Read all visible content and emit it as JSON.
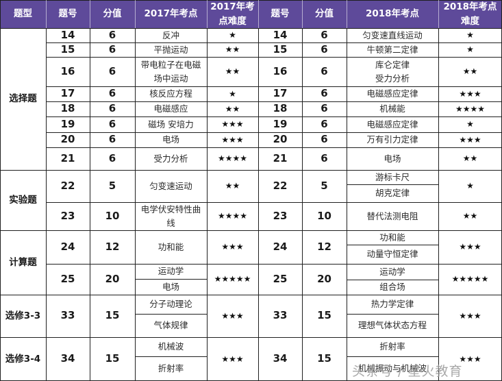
{
  "header": {
    "type": "题型",
    "no_2017": "题号",
    "score_2017": "分值",
    "topic_2017": "2017年考点",
    "diff_2017": "2017年考\n点难度",
    "no_2018": "题号",
    "score_2018": "分值",
    "topic_2018": "2018年考点",
    "diff_2018": "2018年考点\n难度"
  },
  "colors": {
    "header_bg": "#5e4a9a",
    "header_text": "#ffffff",
    "border": "#1f1f1f"
  },
  "sections": [
    {
      "label": "选择题"
    },
    {
      "label": "实验题"
    },
    {
      "label": "计算题"
    },
    {
      "label": "选修3-3"
    },
    {
      "label": "选修3-4"
    }
  ],
  "rows": [
    {
      "no17": "14",
      "s17": "6",
      "t17": [
        "反冲"
      ],
      "d17": "★",
      "no18": "14",
      "s18": "6",
      "t18": [
        "匀变速直线运动"
      ],
      "d18": "★"
    },
    {
      "no17": "15",
      "s17": "6",
      "t17": [
        "平抛运动"
      ],
      "d17": "★★",
      "no18": "15",
      "s18": "6",
      "t18": [
        "牛顿第二定律"
      ],
      "d18": "★"
    },
    {
      "no17": "16",
      "s17": "6",
      "t17": [
        "带电粒子在电磁场中运动"
      ],
      "d17": "★★",
      "no18": "16",
      "s18": "6",
      "t18": [
        "库仑定律",
        "受力分析"
      ],
      "d18": "★★"
    },
    {
      "no17": "17",
      "s17": "6",
      "t17": [
        "核反应方程"
      ],
      "d17": "★",
      "no18": "17",
      "s18": "6",
      "t18": [
        "电磁感应定律"
      ],
      "d18": "★★★"
    },
    {
      "no17": "18",
      "s17": "6",
      "t17": [
        "电磁感应"
      ],
      "d17": "★★",
      "no18": "18",
      "s18": "6",
      "t18": [
        "机械能"
      ],
      "d18": "★★★★"
    },
    {
      "no17": "19",
      "s17": "6",
      "t17": [
        "磁场 安培力"
      ],
      "d17": "★★★",
      "no18": "19",
      "s18": "6",
      "t18": [
        "电磁感应定律"
      ],
      "d18": "★"
    },
    {
      "no17": "20",
      "s17": "6",
      "t17": [
        "电场"
      ],
      "d17": "★★★",
      "no18": "20",
      "s18": "6",
      "t18": [
        "万有引力定律"
      ],
      "d18": "★★★"
    },
    {
      "no17": "21",
      "s17": "6",
      "t17": [
        "受力分析"
      ],
      "d17": "★★★★",
      "no18": "21",
      "s18": "6",
      "t18": [
        "电场"
      ],
      "d18": "★★"
    },
    {
      "no17": "22",
      "s17": "5",
      "t17": [
        "匀变速运动"
      ],
      "d17": "★★",
      "no18": "22",
      "s18": "5",
      "t18": [
        "游标卡尺",
        "胡克定律"
      ],
      "d18": "★"
    },
    {
      "no17": "23",
      "s17": "10",
      "t17": [
        "电学伏安特性曲线"
      ],
      "d17": "★★★★",
      "no18": "23",
      "s18": "10",
      "t18": [
        "替代法测电阻"
      ],
      "d18": "★★"
    },
    {
      "no17": "24",
      "s17": "12",
      "t17": [
        "功和能"
      ],
      "d17": "★★★",
      "no18": "24",
      "s18": "12",
      "t18": [
        "功和能",
        "动量守恒定律"
      ],
      "d18": "★★★"
    },
    {
      "no17": "25",
      "s17": "20",
      "t17": [
        "运动学",
        "电场"
      ],
      "d17": "★★★★★",
      "no18": "25",
      "s18": "20",
      "t18": [
        "运动学",
        "组合场"
      ],
      "d18": "★★★★★"
    },
    {
      "no17": "33",
      "s17": "15",
      "t17": [
        "分子动理论",
        "气体规律"
      ],
      "d17": "★★★",
      "no18": "33",
      "s18": "15",
      "t18": [
        "热力学定律",
        "理想气体状态方程"
      ],
      "d18": "★★★"
    },
    {
      "no17": "34",
      "s17": "15",
      "t17": [
        "机械波",
        "折射率"
      ],
      "d17": "★★★",
      "no18": "34",
      "s18": "15",
      "t18": [
        "折射率",
        "机械振动与机械波"
      ],
      "d18": "★★★"
    }
  ],
  "watermark": "头条号 / 星火教育"
}
